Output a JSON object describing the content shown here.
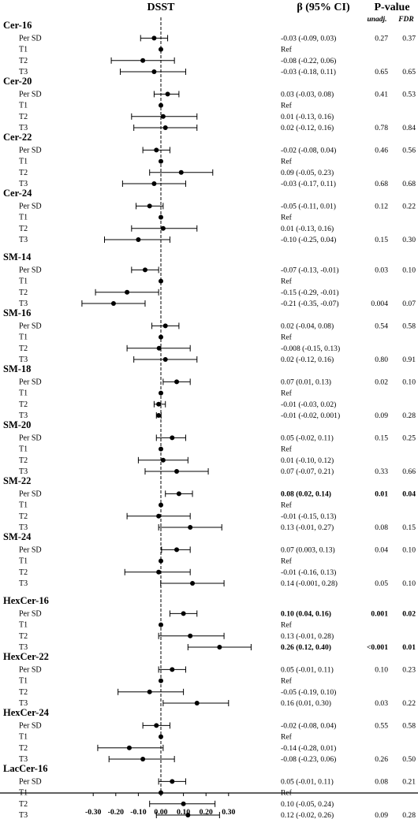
{
  "chart_data": {
    "type": "forest",
    "title": "DSST",
    "beta_header": "β (95% CI)",
    "p_header": "P-value",
    "p_subheaders": [
      "unadj.",
      "FDR"
    ],
    "xlim": [
      -0.37,
      0.37
    ],
    "xticks": [
      -0.3,
      -0.2,
      -0.1,
      0.0,
      0.1,
      0.2,
      0.3
    ],
    "xtick_labels": [
      "-0.30",
      "-0.20",
      "-0.10",
      "0.00",
      "0.10",
      "0.20",
      "0.30"
    ],
    "reference_line": 0,
    "groups": [
      {
        "name": "Cer-16",
        "rows": [
          {
            "label": "Per SD",
            "est": -0.03,
            "lo": -0.09,
            "hi": 0.03,
            "text": "-0.03 (-0.09, 0.03)",
            "p": "0.27",
            "fdr": "0.37",
            "bold": false
          },
          {
            "label": "T1",
            "est": 0,
            "lo": null,
            "hi": null,
            "text": "Ref",
            "p": "",
            "fdr": "",
            "bold": false
          },
          {
            "label": "T2",
            "est": -0.08,
            "lo": -0.22,
            "hi": 0.06,
            "text": "-0.08 (-0.22, 0.06)",
            "p": "",
            "fdr": "",
            "bold": false
          },
          {
            "label": "T3",
            "est": -0.03,
            "lo": -0.18,
            "hi": 0.11,
            "text": "-0.03 (-0.18, 0.11)",
            "p": "0.65",
            "fdr": "0.65",
            "bold": false
          }
        ]
      },
      {
        "name": "Cer-20",
        "rows": [
          {
            "label": "Per SD",
            "est": 0.03,
            "lo": -0.03,
            "hi": 0.08,
            "text": "0.03 (-0.03, 0.08)",
            "p": "0.41",
            "fdr": "0.53",
            "bold": false
          },
          {
            "label": "T1",
            "est": 0,
            "lo": null,
            "hi": null,
            "text": "Ref",
            "p": "",
            "fdr": "",
            "bold": false
          },
          {
            "label": "T2",
            "est": 0.01,
            "lo": -0.13,
            "hi": 0.16,
            "text": "0.01 (-0.13, 0.16)",
            "p": "",
            "fdr": "",
            "bold": false
          },
          {
            "label": "T3",
            "est": 0.02,
            "lo": -0.12,
            "hi": 0.16,
            "text": "0.02 (-0.12, 0.16)",
            "p": "0.78",
            "fdr": "0.84",
            "bold": false
          }
        ]
      },
      {
        "name": "Cer-22",
        "rows": [
          {
            "label": "Per SD",
            "est": -0.02,
            "lo": -0.08,
            "hi": 0.04,
            "text": "-0.02 (-0.08, 0.04)",
            "p": "0.46",
            "fdr": "0.56",
            "bold": false
          },
          {
            "label": "T1",
            "est": 0,
            "lo": null,
            "hi": null,
            "text": "Ref",
            "p": "",
            "fdr": "",
            "bold": false
          },
          {
            "label": "T2",
            "est": 0.09,
            "lo": -0.05,
            "hi": 0.23,
            "text": "0.09 (-0.05, 0.23)",
            "p": "",
            "fdr": "",
            "bold": false
          },
          {
            "label": "T3",
            "est": -0.03,
            "lo": -0.17,
            "hi": 0.11,
            "text": "-0.03 (-0.17, 0.11)",
            "p": "0.68",
            "fdr": "0.68",
            "bold": false
          }
        ]
      },
      {
        "name": "Cer-24",
        "rows": [
          {
            "label": "Per SD",
            "est": -0.05,
            "lo": -0.11,
            "hi": 0.01,
            "text": "-0.05 (-0.11, 0.01)",
            "p": "0.12",
            "fdr": "0.22",
            "bold": false
          },
          {
            "label": "T1",
            "est": 0,
            "lo": null,
            "hi": null,
            "text": "Ref",
            "p": "",
            "fdr": "",
            "bold": false
          },
          {
            "label": "T2",
            "est": 0.01,
            "lo": -0.13,
            "hi": 0.16,
            "text": "0.01 (-0.13, 0.16)",
            "p": "",
            "fdr": "",
            "bold": false
          },
          {
            "label": "T3",
            "est": -0.1,
            "lo": -0.25,
            "hi": 0.04,
            "text": "-0.10 (-0.25, 0.04)",
            "p": "0.15",
            "fdr": "0.30",
            "bold": false
          }
        ]
      },
      {
        "name": "SM-14",
        "rows": [
          {
            "label": "Per SD",
            "est": -0.07,
            "lo": -0.13,
            "hi": -0.01,
            "text": "-0.07 (-0.13, -0.01)",
            "p": "0.03",
            "fdr": "0.10",
            "bold": false
          },
          {
            "label": "T1",
            "est": 0,
            "lo": null,
            "hi": null,
            "text": "Ref",
            "p": "",
            "fdr": "",
            "bold": false
          },
          {
            "label": "T2",
            "est": -0.15,
            "lo": -0.29,
            "hi": -0.01,
            "text": "-0.15 (-0.29, -0.01)",
            "p": "",
            "fdr": "",
            "bold": false
          },
          {
            "label": "T3",
            "est": -0.21,
            "lo": -0.35,
            "hi": -0.07,
            "text": "-0.21 (-0.35, -0.07)",
            "p": "0.004",
            "fdr": "0.07",
            "bold": false
          }
        ]
      },
      {
        "name": "SM-16",
        "rows": [
          {
            "label": "Per SD",
            "est": 0.02,
            "lo": -0.04,
            "hi": 0.08,
            "text": "0.02 (-0.04, 0.08)",
            "p": "0.54",
            "fdr": "0.58",
            "bold": false
          },
          {
            "label": "T1",
            "est": 0,
            "lo": null,
            "hi": null,
            "text": "Ref",
            "p": "",
            "fdr": "",
            "bold": false
          },
          {
            "label": "T2",
            "est": -0.008,
            "lo": -0.15,
            "hi": 0.13,
            "text": "-0.008 (-0.15, 0.13)",
            "p": "",
            "fdr": "",
            "bold": false
          },
          {
            "label": "T3",
            "est": 0.02,
            "lo": -0.12,
            "hi": 0.16,
            "text": "0.02 (-0.12, 0.16)",
            "p": "0.80",
            "fdr": "0.91",
            "bold": false
          }
        ]
      },
      {
        "name": "SM-18",
        "rows": [
          {
            "label": "Per SD",
            "est": 0.07,
            "lo": 0.01,
            "hi": 0.13,
            "text": "0.07 (0.01, 0.13)",
            "p": "0.02",
            "fdr": "0.10",
            "bold": false
          },
          {
            "label": "T1",
            "est": 0,
            "lo": null,
            "hi": null,
            "text": "Ref",
            "p": "",
            "fdr": "",
            "bold": false
          },
          {
            "label": "T2",
            "est": -0.01,
            "lo": -0.03,
            "hi": 0.02,
            "text": "-0.01 (-0.03, 0.02)",
            "p": "",
            "fdr": "",
            "bold": false
          },
          {
            "label": "T3",
            "est": -0.01,
            "lo": -0.02,
            "hi": 0.001,
            "text": "-0.01 (-0.02, 0.001)",
            "p": "0.09",
            "fdr": "0.28",
            "bold": false
          }
        ]
      },
      {
        "name": "SM-20",
        "rows": [
          {
            "label": "Per SD",
            "est": 0.05,
            "lo": -0.02,
            "hi": 0.11,
            "text": "0.05 (-0.02, 0.11)",
            "p": "0.15",
            "fdr": "0.25",
            "bold": false
          },
          {
            "label": "T1",
            "est": 0,
            "lo": null,
            "hi": null,
            "text": "Ref",
            "p": "",
            "fdr": "",
            "bold": false
          },
          {
            "label": "T2",
            "est": 0.01,
            "lo": -0.1,
            "hi": 0.12,
            "text": "0.01 (-0.10, 0.12)",
            "p": "",
            "fdr": "",
            "bold": false
          },
          {
            "label": "T3",
            "est": 0.07,
            "lo": -0.07,
            "hi": 0.21,
            "text": "0.07 (-0.07, 0.21)",
            "p": "0.33",
            "fdr": "0.66",
            "bold": false
          }
        ]
      },
      {
        "name": "SM-22",
        "rows": [
          {
            "label": "Per SD",
            "est": 0.08,
            "lo": 0.02,
            "hi": 0.14,
            "text": "0.08 (0.02, 0.14)",
            "p": "0.01",
            "fdr": "0.04",
            "bold": true
          },
          {
            "label": "T1",
            "est": 0,
            "lo": null,
            "hi": null,
            "text": "Ref",
            "p": "",
            "fdr": "",
            "bold": false
          },
          {
            "label": "T2",
            "est": -0.01,
            "lo": -0.15,
            "hi": 0.13,
            "text": "-0.01 (-0.15, 0.13)",
            "p": "",
            "fdr": "",
            "bold": false
          },
          {
            "label": "T3",
            "est": 0.13,
            "lo": -0.01,
            "hi": 0.27,
            "text": "0.13 (-0.01, 0.27)",
            "p": "0.08",
            "fdr": "0.15",
            "bold": false
          }
        ]
      },
      {
        "name": "SM-24",
        "rows": [
          {
            "label": "Per SD",
            "est": 0.07,
            "lo": 0.003,
            "hi": 0.13,
            "text": "0.07 (0.003, 0.13)",
            "p": "0.04",
            "fdr": "0.10",
            "bold": false
          },
          {
            "label": "T1",
            "est": 0,
            "lo": null,
            "hi": null,
            "text": "Ref",
            "p": "",
            "fdr": "",
            "bold": false
          },
          {
            "label": "T2",
            "est": -0.01,
            "lo": -0.16,
            "hi": 0.13,
            "text": "-0.01 (-0.16, 0.13)",
            "p": "",
            "fdr": "",
            "bold": false
          },
          {
            "label": "T3",
            "est": 0.14,
            "lo": -0.001,
            "hi": 0.28,
            "text": "0.14 (-0.001, 0.28)",
            "p": "0.05",
            "fdr": "0.10",
            "bold": false
          }
        ]
      },
      {
        "name": "HexCer-16",
        "rows": [
          {
            "label": "Per SD",
            "est": 0.1,
            "lo": 0.04,
            "hi": 0.16,
            "text": "0.10 (0.04, 0.16)",
            "p": "0.001",
            "fdr": "0.02",
            "bold": true
          },
          {
            "label": "T1",
            "est": 0,
            "lo": null,
            "hi": null,
            "text": "Ref",
            "p": "",
            "fdr": "",
            "bold": false
          },
          {
            "label": "T2",
            "est": 0.13,
            "lo": -0.01,
            "hi": 0.28,
            "text": "0.13 (-0.01, 0.28)",
            "p": "",
            "fdr": "",
            "bold": false
          },
          {
            "label": "T3",
            "est": 0.26,
            "lo": 0.12,
            "hi": 0.4,
            "text": "0.26 (0.12, 0.40)",
            "p": "<0.001",
            "fdr": "0.01",
            "bold": true
          }
        ]
      },
      {
        "name": "HexCer-22",
        "rows": [
          {
            "label": "Per SD",
            "est": 0.05,
            "lo": -0.01,
            "hi": 0.11,
            "text": "0.05 (-0.01, 0.11)",
            "p": "0.10",
            "fdr": "0.23",
            "bold": false
          },
          {
            "label": "T1",
            "est": 0,
            "lo": null,
            "hi": null,
            "text": "Ref",
            "p": "",
            "fdr": "",
            "bold": false
          },
          {
            "label": "T2",
            "est": -0.05,
            "lo": -0.19,
            "hi": 0.1,
            "text": "-0.05 (-0.19, 0.10)",
            "p": "",
            "fdr": "",
            "bold": false
          },
          {
            "label": "T3",
            "est": 0.16,
            "lo": 0.01,
            "hi": 0.3,
            "text": "0.16 (0.01, 0.30)",
            "p": "0.03",
            "fdr": "0.22",
            "bold": false
          }
        ]
      },
      {
        "name": "HexCer-24",
        "rows": [
          {
            "label": "Per SD",
            "est": -0.02,
            "lo": -0.08,
            "hi": 0.04,
            "text": "-0.02 (-0.08, 0.04)",
            "p": "0.55",
            "fdr": "0.58",
            "bold": false
          },
          {
            "label": "T1",
            "est": 0,
            "lo": null,
            "hi": null,
            "text": "Ref",
            "p": "",
            "fdr": "",
            "bold": false
          },
          {
            "label": "T2",
            "est": -0.14,
            "lo": -0.28,
            "hi": 0.01,
            "text": "-0.14 (-0.28, 0.01)",
            "p": "",
            "fdr": "",
            "bold": false
          },
          {
            "label": "T3",
            "est": -0.08,
            "lo": -0.23,
            "hi": 0.06,
            "text": "-0.08 (-0.23, 0.06)",
            "p": "0.26",
            "fdr": "0.50",
            "bold": false
          }
        ]
      },
      {
        "name": "LacCer-16",
        "rows": [
          {
            "label": "Per SD",
            "est": 0.05,
            "lo": -0.01,
            "hi": 0.11,
            "text": "0.05 (-0.01, 0.11)",
            "p": "0.08",
            "fdr": "0.21",
            "bold": false
          },
          {
            "label": "T1",
            "est": 0,
            "lo": null,
            "hi": null,
            "text": "Ref",
            "p": "",
            "fdr": "",
            "bold": false
          },
          {
            "label": "T2",
            "est": 0.1,
            "lo": -0.05,
            "hi": 0.24,
            "text": "0.10 (-0.05, 0.24)",
            "p": "",
            "fdr": "",
            "bold": false
          },
          {
            "label": "T3",
            "est": 0.12,
            "lo": -0.02,
            "hi": 0.26,
            "text": "0.12 (-0.02, 0.26)",
            "p": "0.09",
            "fdr": "0.28",
            "bold": false
          }
        ]
      }
    ]
  }
}
